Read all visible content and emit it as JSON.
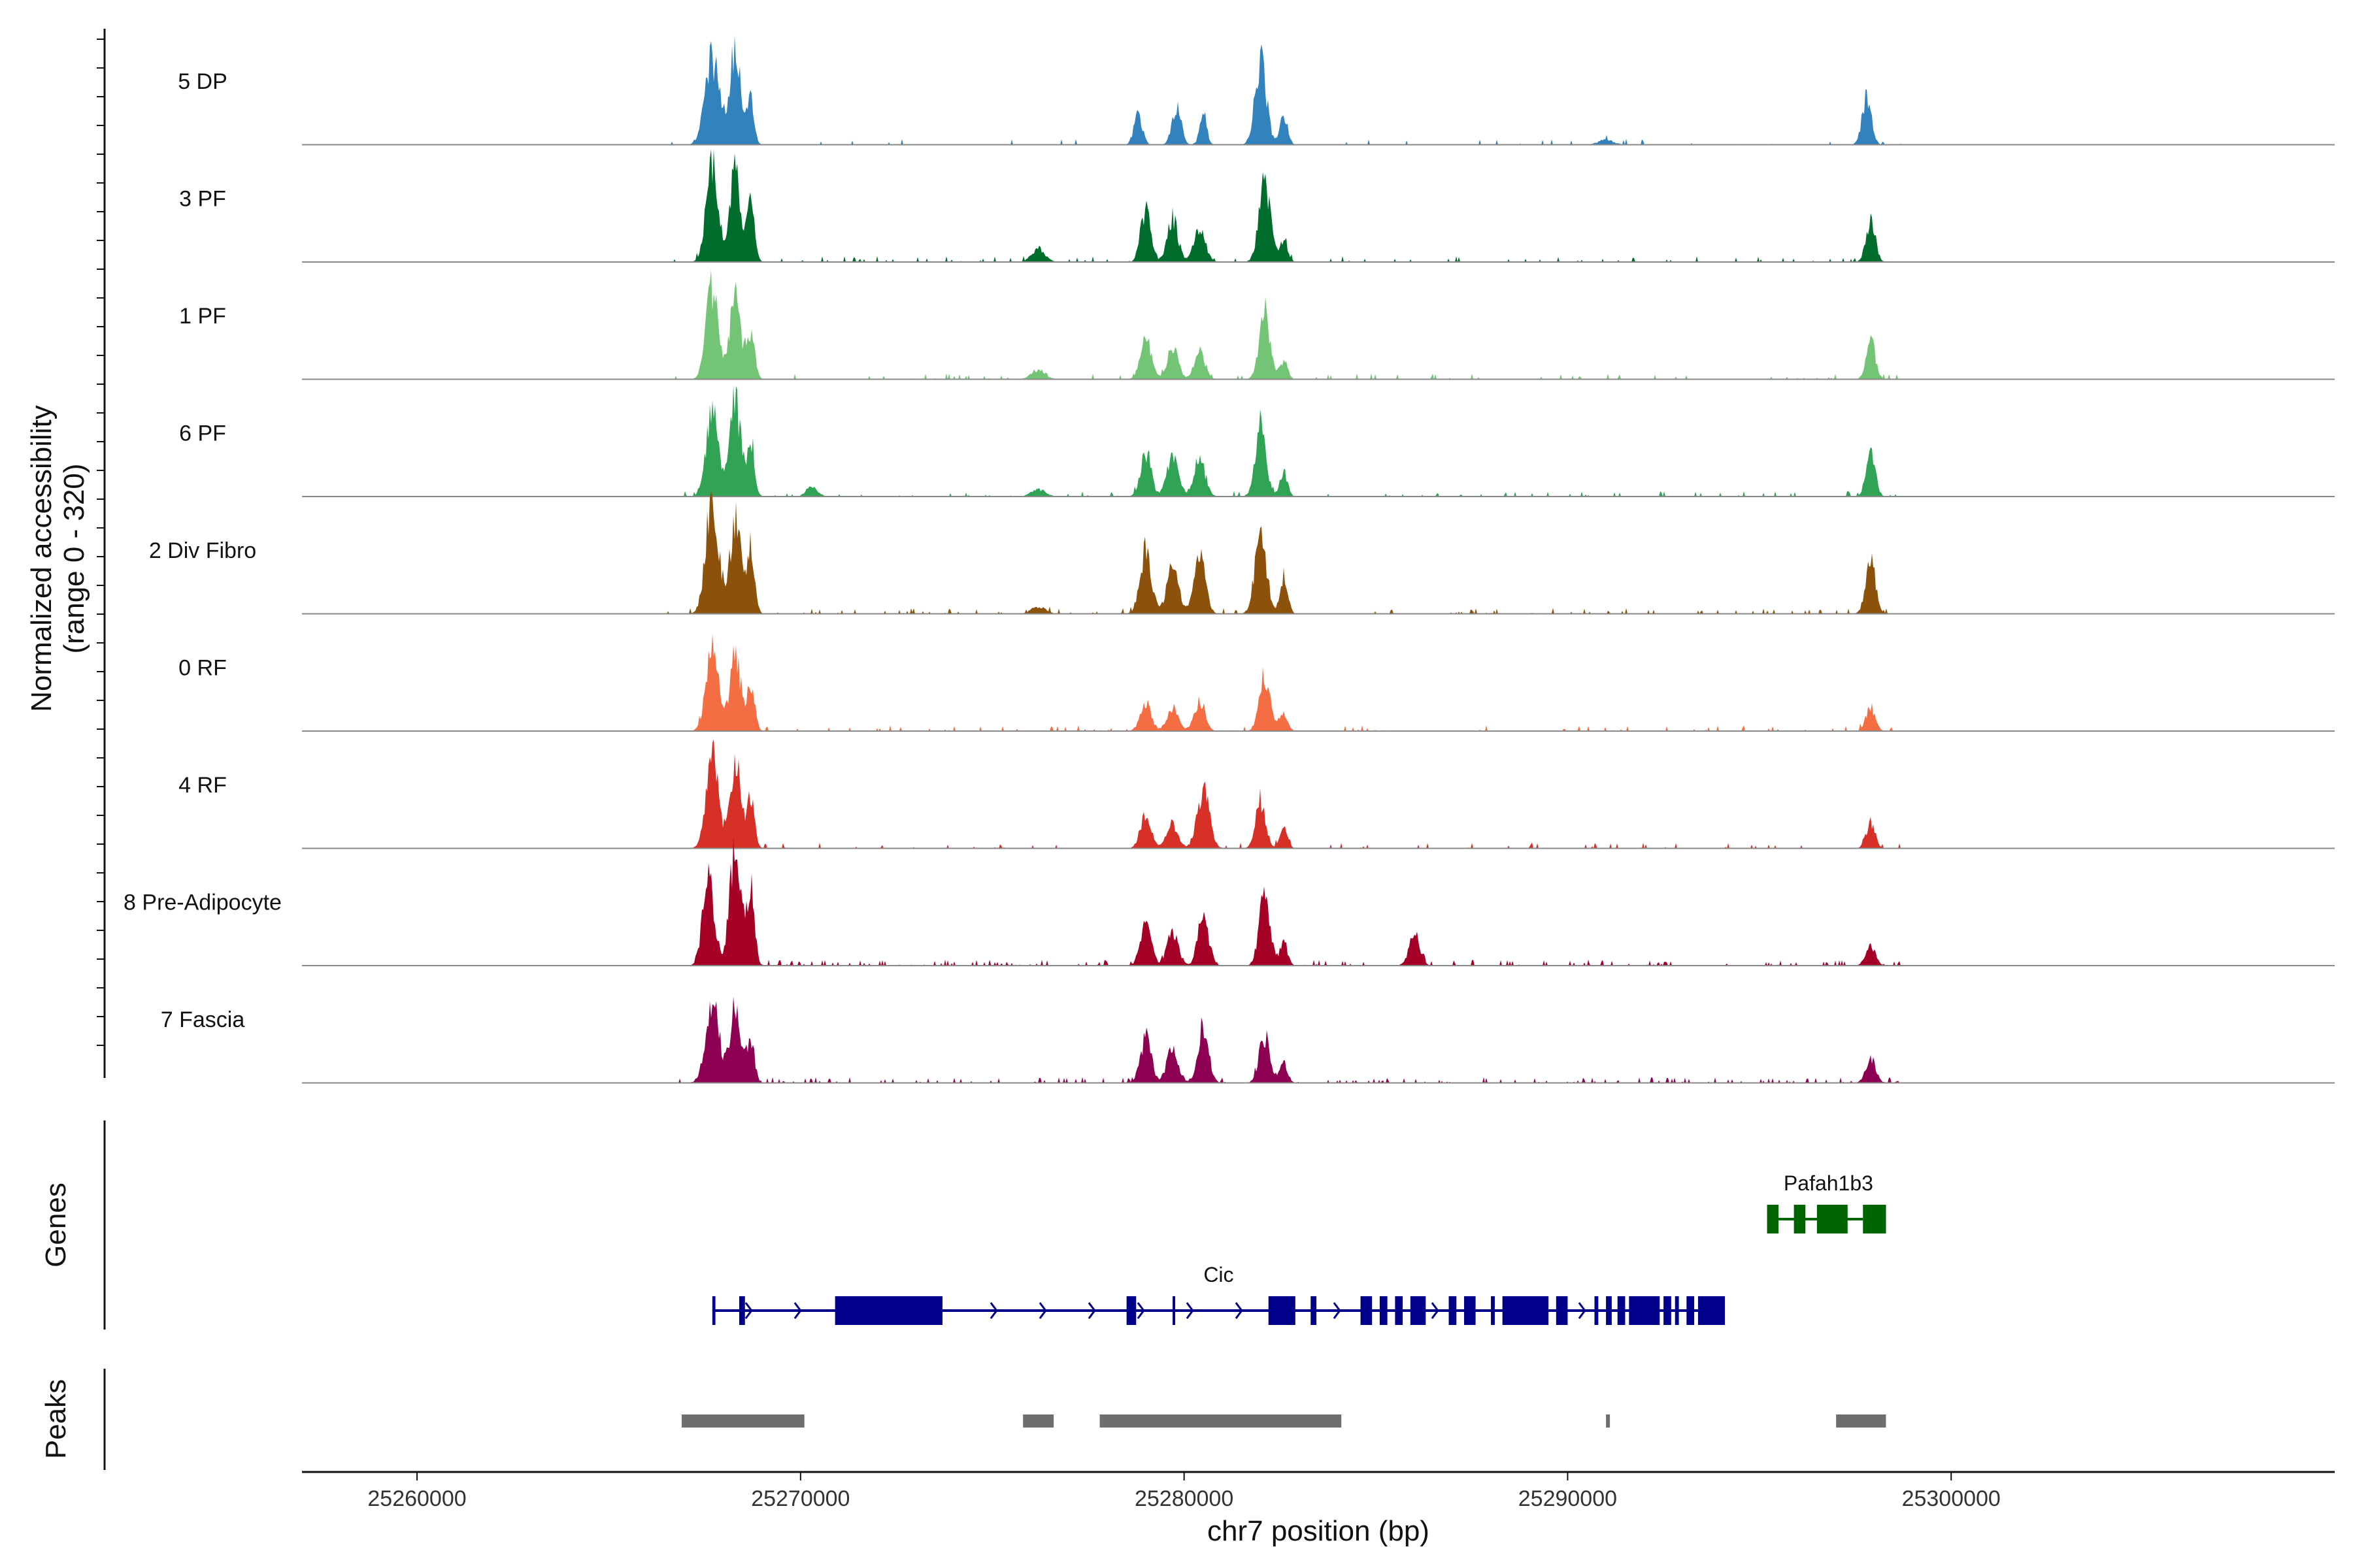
{
  "chart_data": {
    "type": "area",
    "title": "",
    "region": {
      "chrom": "chr7",
      "start": 25257000,
      "end": 25310000
    },
    "xlabel": "chr7 position (bp)",
    "ylabel_line1": "Normalized accessibility",
    "ylabel_line2": "(range 0 - 320)",
    "ylim": [
      0,
      320
    ],
    "xticks": [
      {
        "value": 25260000,
        "label": "25260000"
      },
      {
        "value": 25270000,
        "label": "25270000"
      },
      {
        "value": 25280000,
        "label": "25280000"
      },
      {
        "value": 25290000,
        "label": "25290000"
      },
      {
        "value": 25300000,
        "label": "25300000"
      }
    ],
    "tracks": [
      {
        "name": "5 DP",
        "color": "#3182bd",
        "noise": 0.01,
        "peaks": [
          [
            25267700,
            180,
            190
          ],
          [
            25268300,
            200,
            140
          ],
          [
            25268700,
            100,
            90
          ],
          [
            25278800,
            60,
            110
          ],
          [
            25279800,
            80,
            120
          ],
          [
            25280500,
            65,
            90
          ],
          [
            25282000,
            170,
            150
          ],
          [
            25282600,
            60,
            100
          ],
          [
            25291000,
            10,
            200
          ],
          [
            25297800,
            100,
            120
          ]
        ]
      },
      {
        "name": "3 PF",
        "color": "#006d2c",
        "noise": 0.015,
        "peaks": [
          [
            25267700,
            200,
            160
          ],
          [
            25268300,
            190,
            140
          ],
          [
            25268700,
            120,
            100
          ],
          [
            25276200,
            25,
            180
          ],
          [
            25279000,
            110,
            130
          ],
          [
            25279700,
            90,
            140
          ],
          [
            25280400,
            70,
            150
          ],
          [
            25282100,
            160,
            150
          ],
          [
            25282600,
            50,
            100
          ],
          [
            25297900,
            90,
            120
          ]
        ]
      },
      {
        "name": "1 PF",
        "color": "#74c476",
        "noise": 0.015,
        "peaks": [
          [
            25267700,
            190,
            160
          ],
          [
            25268300,
            170,
            140
          ],
          [
            25268700,
            100,
            100
          ],
          [
            25276200,
            20,
            180
          ],
          [
            25279000,
            90,
            140
          ],
          [
            25279700,
            70,
            140
          ],
          [
            25280400,
            60,
            140
          ],
          [
            25282100,
            140,
            140
          ],
          [
            25282600,
            40,
            100
          ],
          [
            25297900,
            80,
            120
          ]
        ]
      },
      {
        "name": "6 PF",
        "color": "#31a354",
        "noise": 0.018,
        "peaks": [
          [
            25267700,
            180,
            160
          ],
          [
            25268300,
            200,
            140
          ],
          [
            25268700,
            110,
            100
          ],
          [
            25270300,
            20,
            150
          ],
          [
            25276200,
            15,
            180
          ],
          [
            25279000,
            90,
            140
          ],
          [
            25279700,
            80,
            150
          ],
          [
            25280400,
            80,
            150
          ],
          [
            25282000,
            150,
            140
          ],
          [
            25282600,
            50,
            100
          ],
          [
            25297900,
            90,
            120
          ]
        ]
      },
      {
        "name": "2 Div Fibro",
        "color": "#8c510a",
        "noise": 0.02,
        "peaks": [
          [
            25267700,
            230,
            170
          ],
          [
            25268300,
            200,
            140
          ],
          [
            25268700,
            140,
            100
          ],
          [
            25276200,
            15,
            180
          ],
          [
            25279000,
            130,
            150
          ],
          [
            25279700,
            100,
            150
          ],
          [
            25280400,
            120,
            150
          ],
          [
            25282000,
            170,
            150
          ],
          [
            25282600,
            80,
            100
          ],
          [
            25297900,
            110,
            130
          ]
        ]
      },
      {
        "name": "0 RF",
        "color": "#f46d43",
        "noise": 0.015,
        "peaks": [
          [
            25267700,
            180,
            160
          ],
          [
            25268300,
            160,
            140
          ],
          [
            25268700,
            100,
            100
          ],
          [
            25279000,
            60,
            140
          ],
          [
            25279700,
            50,
            150
          ],
          [
            25280400,
            60,
            140
          ],
          [
            25282100,
            120,
            140
          ],
          [
            25282600,
            40,
            100
          ],
          [
            25297900,
            50,
            120
          ]
        ]
      },
      {
        "name": "4 RF",
        "color": "#d73027",
        "noise": 0.015,
        "peaks": [
          [
            25267700,
            200,
            160
          ],
          [
            25268300,
            180,
            140
          ],
          [
            25268700,
            110,
            100
          ],
          [
            25279000,
            70,
            140
          ],
          [
            25279700,
            50,
            150
          ],
          [
            25280500,
            120,
            160
          ],
          [
            25282000,
            100,
            130
          ],
          [
            25282600,
            40,
            100
          ],
          [
            25297900,
            50,
            120
          ]
        ]
      },
      {
        "name": "8 Pre-Adipocyte",
        "color": "#a50026",
        "noise": 0.03,
        "peaks": [
          [
            25267600,
            180,
            150
          ],
          [
            25268300,
            240,
            150
          ],
          [
            25268700,
            160,
            100
          ],
          [
            25279000,
            90,
            140
          ],
          [
            25279700,
            70,
            150
          ],
          [
            25280500,
            100,
            140
          ],
          [
            25282100,
            150,
            140
          ],
          [
            25282600,
            50,
            100
          ],
          [
            25286000,
            60,
            140
          ],
          [
            25297900,
            40,
            130
          ]
        ]
      },
      {
        "name": "7 Fascia",
        "color": "#8e0152",
        "noise": 0.03,
        "peaks": [
          [
            25267700,
            180,
            170
          ],
          [
            25268300,
            170,
            140
          ],
          [
            25268700,
            90,
            100
          ],
          [
            25279000,
            90,
            140
          ],
          [
            25279700,
            70,
            150
          ],
          [
            25280500,
            110,
            140
          ],
          [
            25282100,
            100,
            140
          ],
          [
            25282600,
            40,
            100
          ],
          [
            25297900,
            50,
            130
          ]
        ]
      }
    ],
    "genes_panel": {
      "title": "Genes",
      "genes": [
        {
          "name": "Cic",
          "color": "#00008b",
          "strand": "+",
          "row": 1,
          "label_pos": 25280900,
          "start": 25267700,
          "end": 25294100,
          "exons": [
            [
              25267700,
              25267780
            ],
            [
              25268400,
              25268550
            ],
            [
              25270900,
              25273700
            ],
            [
              25278500,
              25278750
            ],
            [
              25279700,
              25279760
            ],
            [
              25282200,
              25282900
            ],
            [
              25283300,
              25283450
            ],
            [
              25284600,
              25284900
            ],
            [
              25285100,
              25285300
            ],
            [
              25285500,
              25285700
            ],
            [
              25285900,
              25286300
            ],
            [
              25286900,
              25287100
            ],
            [
              25287300,
              25287600
            ],
            [
              25288000,
              25288100
            ],
            [
              25288300,
              25289500
            ],
            [
              25289700,
              25290000
            ],
            [
              25290700,
              25290800
            ],
            [
              25291000,
              25291150
            ],
            [
              25291300,
              25291500
            ],
            [
              25291600,
              25292400
            ],
            [
              25292500,
              25292700
            ],
            [
              25292800,
              25292900
            ],
            [
              25293100,
              25293300
            ],
            [
              25293400,
              25294100
            ]
          ]
        },
        {
          "name": "Pafah1b3",
          "color": "#006400",
          "strand": "-",
          "row": 0,
          "label_pos": 25296800,
          "start": 25295200,
          "end": 25297700,
          "exons": [
            [
              25295200,
              25295500
            ],
            [
              25295900,
              25296200
            ],
            [
              25296500,
              25297300
            ],
            [
              25297700,
              25298300
            ]
          ]
        }
      ]
    },
    "peaks_panel": {
      "title": "Peaks",
      "color": "#6e6e6e",
      "regions": [
        [
          25266900,
          25270100
        ],
        [
          25275800,
          25276600
        ],
        [
          25277800,
          25284100
        ],
        [
          25291000,
          25291100
        ],
        [
          25297000,
          25298300
        ]
      ]
    }
  }
}
